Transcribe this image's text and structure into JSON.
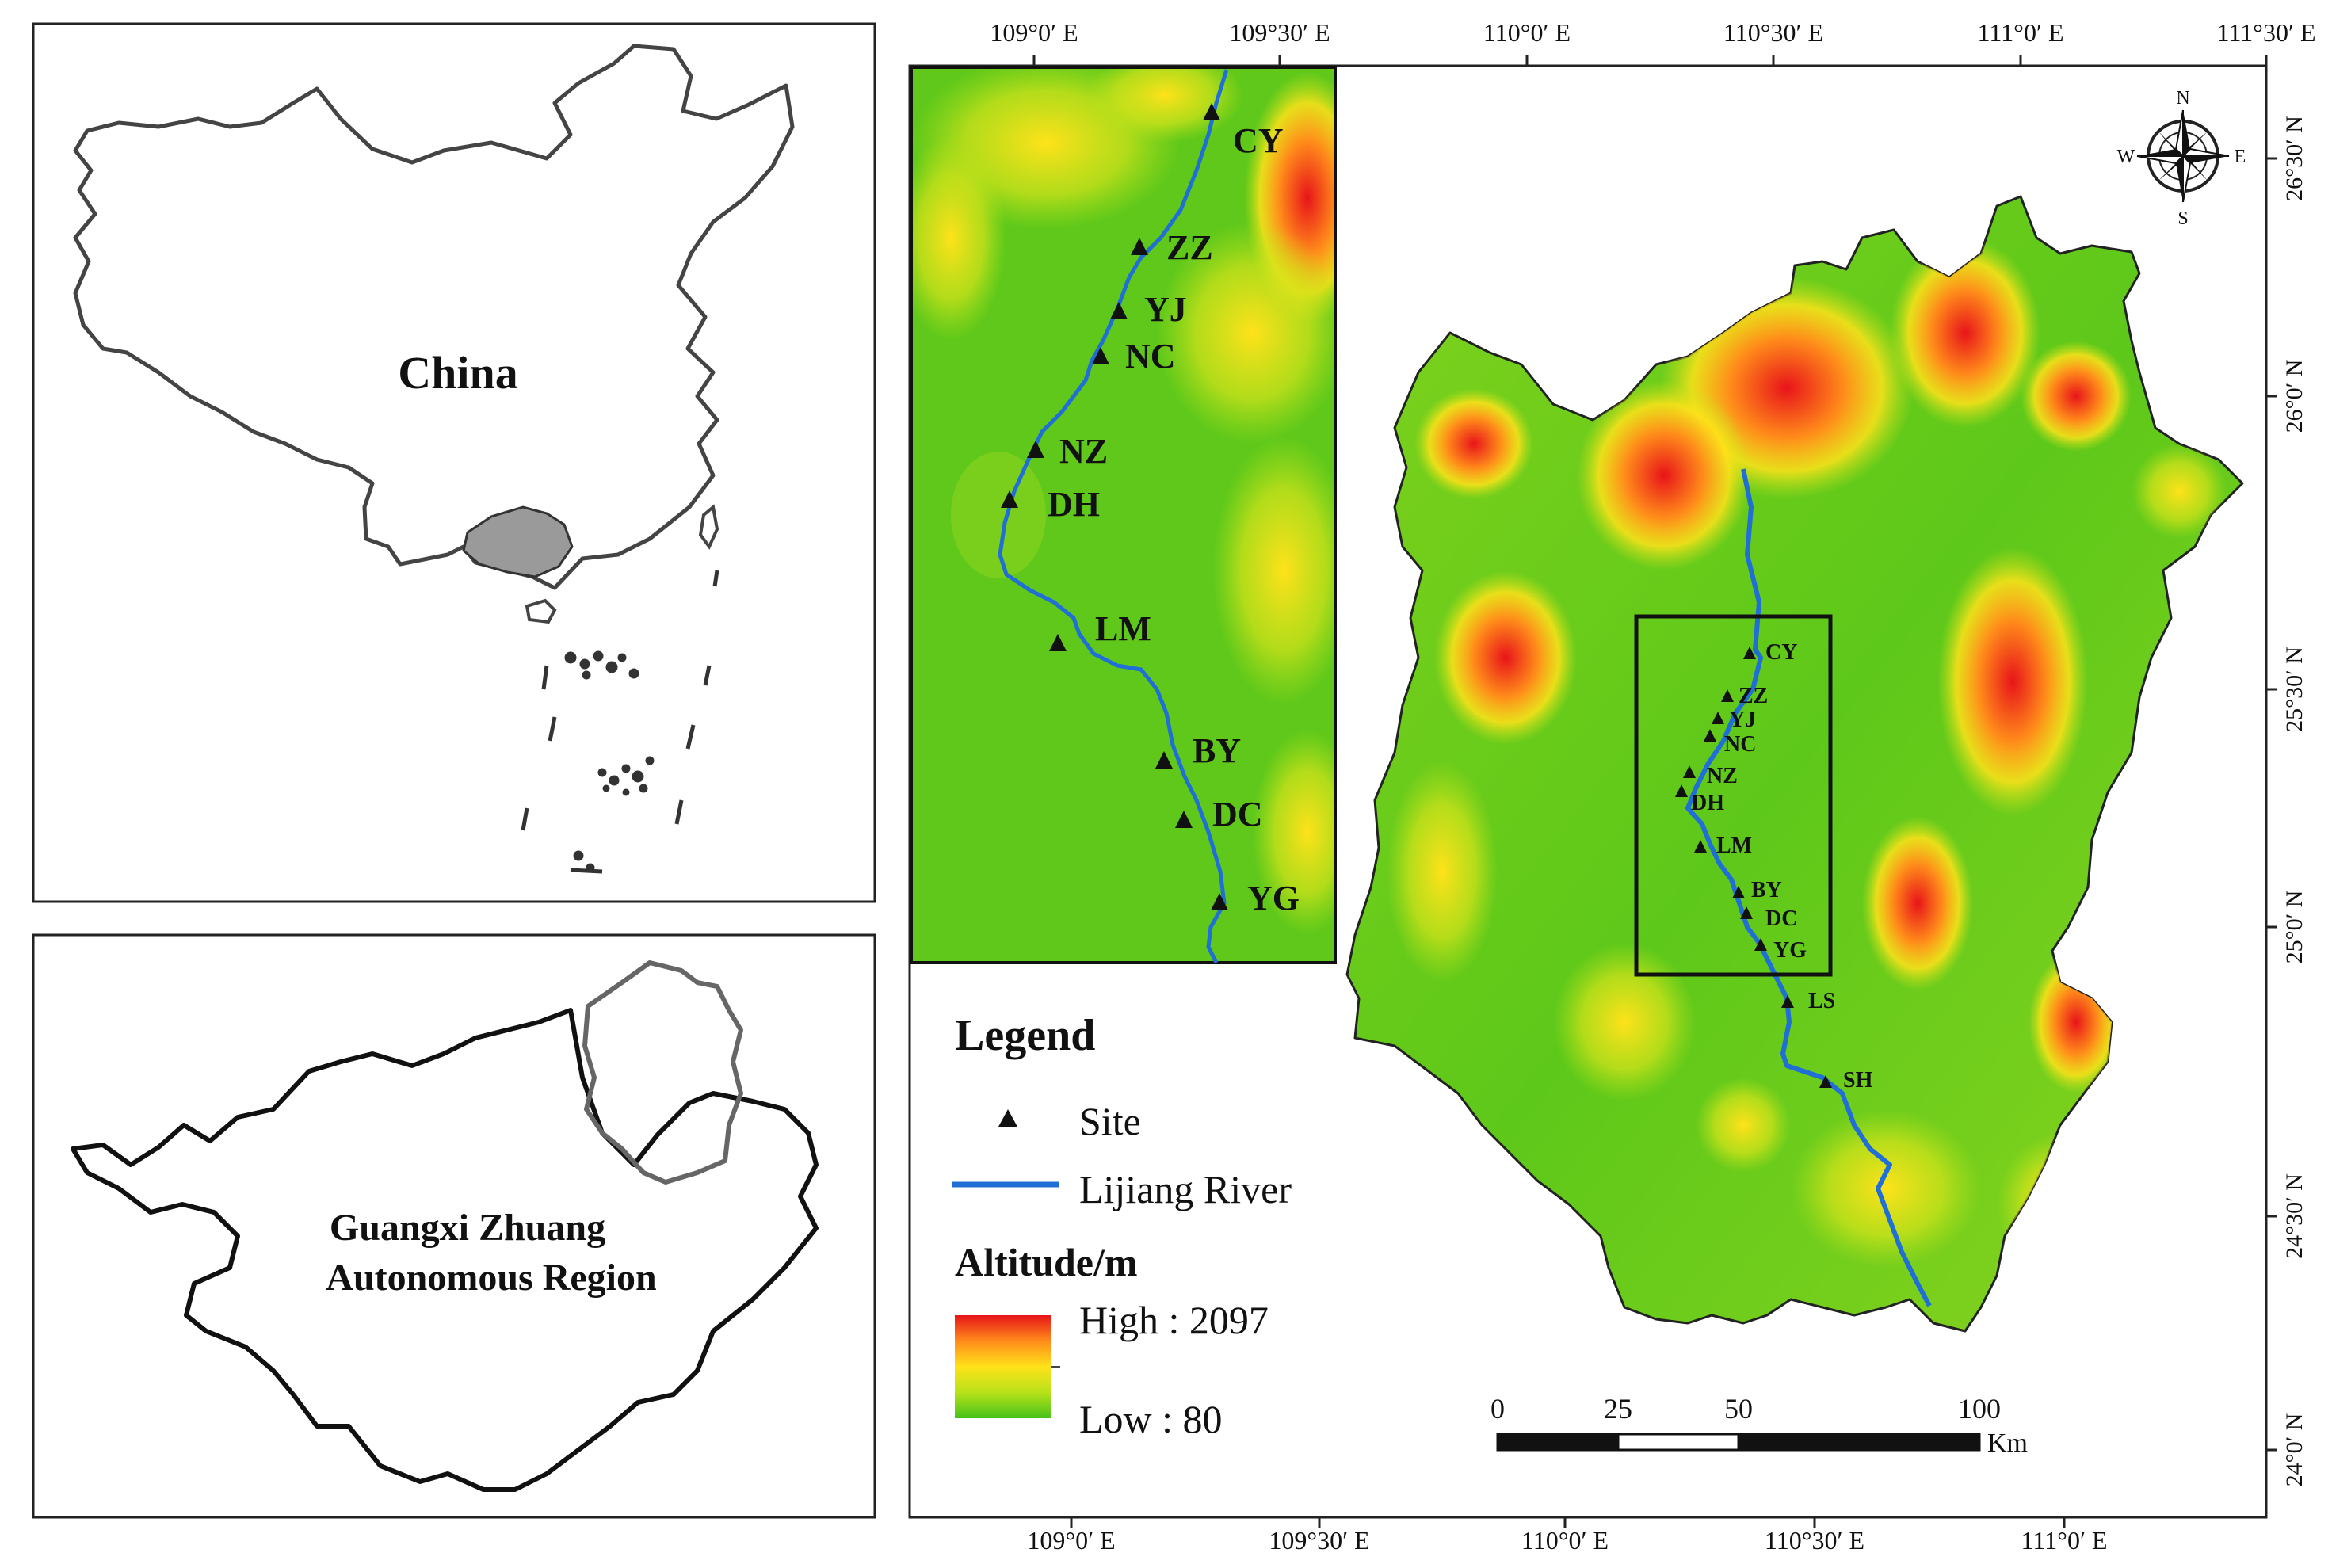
{
  "china_panel": {
    "label": "China"
  },
  "guangxi_panel": {
    "label_line1": "Guangxi Zhuang",
    "label_line2": "Autonomous Region"
  },
  "top_lon_ticks": [
    "109°0′ E",
    "109°30′ E",
    "110°0′ E",
    "110°30′ E",
    "111°0′ E",
    "111°30′ E"
  ],
  "bottom_lon_ticks": [
    "109°0′ E",
    "109°30′ E",
    "110°0′ E",
    "110°30′ E",
    "111°0′ E"
  ],
  "right_lat_ticks": [
    "26°30′ N",
    "26°0′ N",
    "25°30′ N",
    "25°0′ N",
    "24°30′ N",
    "24°0′ N"
  ],
  "compass": {
    "n": "N",
    "s": "S",
    "e": "E",
    "w": "W"
  },
  "legend": {
    "title": "Legend",
    "site_label": "Site",
    "river_label": "Lijiang River",
    "altitude_title": "Altitude/m",
    "high_label": "High : 2097",
    "low_label": "Low : 80",
    "river_color": "#1f6fd6",
    "ramp_colors": [
      "#e8141a",
      "#ff8c1a",
      "#ffe21a",
      "#b8e21a",
      "#46c21a"
    ]
  },
  "scale_bar": {
    "ticks": [
      "0",
      "25",
      "50",
      "100"
    ],
    "unit": "Km"
  },
  "sites_inset": [
    "CY",
    "ZZ",
    "YJ",
    "NC",
    "NZ",
    "DH",
    "LM",
    "BY",
    "DC",
    "YG"
  ],
  "sites_main": [
    "CY",
    "ZZ",
    "YJ",
    "NC",
    "NZ",
    "DH",
    "LM",
    "BY",
    "DC",
    "YG",
    "LS",
    "SH"
  ]
}
